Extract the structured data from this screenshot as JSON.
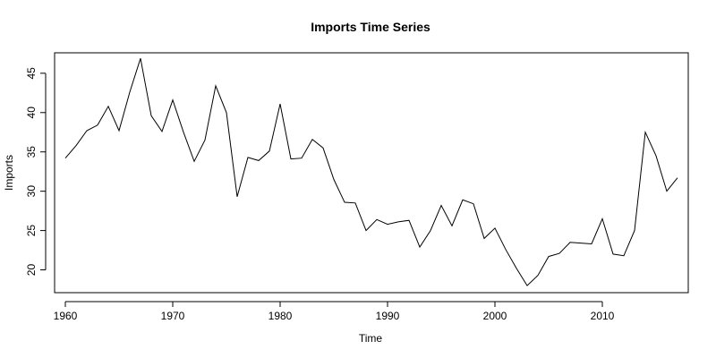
{
  "chart_data": {
    "type": "line",
    "title": "Imports Time Series",
    "xlabel": "Time",
    "ylabel": "Imports",
    "xlim": [
      1959.0,
      2018.0
    ],
    "ylim": [
      17.1,
      47.6
    ],
    "x_ticks": [
      1960,
      1970,
      1980,
      1990,
      2000,
      2010
    ],
    "y_ticks": [
      20,
      25,
      30,
      35,
      40,
      45
    ],
    "grid": false,
    "legend": "none",
    "x": [
      1960,
      1961,
      1962,
      1963,
      1964,
      1965,
      1966,
      1967,
      1968,
      1969,
      1970,
      1971,
      1972,
      1973,
      1974,
      1975,
      1976,
      1977,
      1978,
      1979,
      1980,
      1981,
      1982,
      1983,
      1984,
      1985,
      1986,
      1987,
      1988,
      1989,
      1990,
      1991,
      1992,
      1993,
      1994,
      1995,
      1996,
      1997,
      1998,
      1999,
      2000,
      2001,
      2002,
      2003,
      2004,
      2005,
      2006,
      2007,
      2008,
      2009,
      2010,
      2011,
      2012,
      2013,
      2014,
      2015,
      2016,
      2017
    ],
    "series": [
      {
        "values": [
          34.2,
          35.8,
          37.7,
          38.4,
          40.8,
          37.7,
          42.6,
          46.9,
          39.6,
          37.6,
          41.6,
          37.5,
          33.8,
          36.5,
          43.4,
          40.0,
          29.3,
          34.3,
          33.9,
          35.1,
          41.1,
          34.1,
          34.2,
          36.6,
          35.5,
          31.5,
          28.6,
          28.5,
          25.0,
          26.4,
          25.8,
          26.1,
          26.3,
          22.9,
          25.0,
          28.2,
          25.6,
          28.9,
          28.4,
          24.0,
          25.3,
          22.6,
          20.2,
          18.0,
          19.3,
          21.7,
          22.1,
          23.5,
          23.4,
          23.3,
          26.5,
          22.0,
          21.8,
          25.0,
          37.5,
          34.5,
          30.0,
          31.7
        ],
        "color": "#000000"
      }
    ]
  }
}
